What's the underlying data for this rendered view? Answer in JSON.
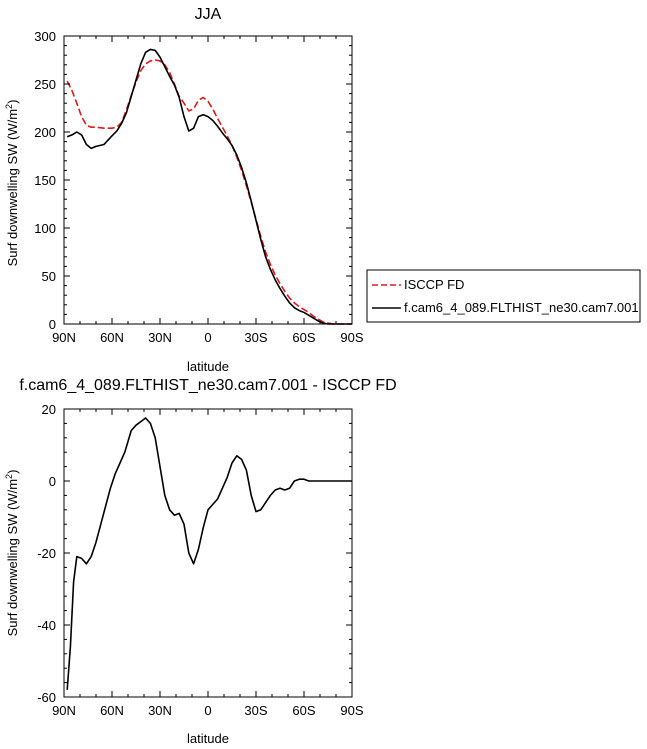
{
  "chart_data": [
    {
      "type": "line",
      "title": "JJA",
      "xlabel": "latitude",
      "ylabel": "Surf downwelling SW (W/m",
      "ylabel_sup": "2",
      "ylabel_close": ")",
      "xlim": [
        90,
        -90
      ],
      "ylim": [
        0,
        300
      ],
      "xticks": [
        90,
        60,
        30,
        0,
        -30,
        -60,
        -90
      ],
      "xtick_labels": [
        "90N",
        "60N",
        "30N",
        "0",
        "30S",
        "60S",
        "90S"
      ],
      "yticks": [
        0,
        50,
        100,
        150,
        200,
        250,
        300
      ],
      "ytick_labels": [
        "0",
        "50",
        "100",
        "150",
        "200",
        "250",
        "300"
      ],
      "legend_position": "right",
      "series": [
        {
          "name": "ISCCP FD",
          "color": "#e0191a",
          "dash": "dashed",
          "x": [
            88,
            85,
            82,
            79,
            76,
            73,
            70,
            65,
            60,
            57,
            54,
            51,
            48,
            45,
            42,
            39,
            36,
            33,
            30,
            27,
            24,
            21,
            18,
            15,
            12,
            9,
            6,
            3,
            0,
            -3,
            -6,
            -9,
            -12,
            -15,
            -18,
            -21,
            -24,
            -27,
            -30,
            -33,
            -36,
            -39,
            -42,
            -45,
            -48,
            -51,
            -54,
            -57,
            -60,
            -63,
            -66,
            -69,
            -72,
            -75,
            -78,
            -81,
            -84,
            -87,
            -90
          ],
          "y": [
            253,
            243,
            230,
            216,
            207,
            205,
            205,
            204,
            204,
            205,
            210,
            223,
            238,
            252,
            264,
            271,
            274,
            275,
            274,
            270,
            262,
            250,
            237,
            230,
            222,
            224,
            233,
            236,
            232,
            224,
            214,
            205,
            196,
            186,
            174,
            160,
            144,
            127,
            109,
            91,
            75,
            62,
            51,
            42,
            34,
            27,
            22,
            18,
            15,
            12,
            8,
            5,
            2,
            1,
            0,
            0,
            0,
            0,
            0
          ]
        },
        {
          "name": "f.cam6_4_089.FLTHIST_ne30.cam7.001",
          "color": "#000000",
          "dash": "solid",
          "x": [
            88,
            85,
            82,
            79,
            76,
            73,
            70,
            65,
            60,
            57,
            54,
            51,
            48,
            45,
            42,
            39,
            36,
            33,
            30,
            27,
            24,
            21,
            18,
            15,
            12,
            9,
            6,
            3,
            0,
            -3,
            -6,
            -9,
            -12,
            -15,
            -18,
            -21,
            -24,
            -27,
            -30,
            -33,
            -36,
            -39,
            -42,
            -45,
            -48,
            -51,
            -54,
            -57,
            -60,
            -63,
            -66,
            -69,
            -72,
            -75,
            -78,
            -81,
            -84,
            -87,
            -90
          ],
          "y": [
            195,
            197,
            200,
            197,
            187,
            183,
            185,
            187,
            196,
            201,
            209,
            220,
            237,
            254,
            271,
            283,
            286,
            285,
            278,
            268,
            258,
            249,
            236,
            216,
            201,
            204,
            216,
            218,
            216,
            212,
            206,
            199,
            193,
            186,
            176,
            163,
            147,
            128,
            108,
            88,
            70,
            57,
            46,
            37,
            29,
            22,
            17,
            14,
            12,
            9,
            6,
            3,
            1,
            0,
            0,
            0,
            0,
            0,
            0
          ]
        }
      ]
    },
    {
      "type": "line",
      "title": "f.cam6_4_089.FLTHIST_ne30.cam7.001 - ISCCP FD",
      "xlabel": "latitude",
      "ylabel": "Surf downwelling SW (W/m",
      "ylabel_sup": "2",
      "ylabel_close": ")",
      "xlim": [
        90,
        -90
      ],
      "ylim": [
        -60,
        20
      ],
      "xticks": [
        90,
        60,
        30,
        0,
        -30,
        -60,
        -90
      ],
      "xtick_labels": [
        "90N",
        "60N",
        "30N",
        "0",
        "30S",
        "60S",
        "90S"
      ],
      "yticks": [
        -60,
        -40,
        -20,
        0,
        20
      ],
      "ytick_labels": [
        "-60",
        "-40",
        "-20",
        "0",
        "20"
      ],
      "series": [
        {
          "color": "#000000",
          "dash": "solid",
          "x": [
            88,
            86,
            84,
            82,
            79,
            76,
            73,
            70,
            67,
            64,
            61,
            58,
            55,
            52,
            48,
            45,
            42,
            39,
            36,
            33,
            30,
            27,
            24,
            21,
            18,
            15,
            12,
            9,
            6,
            3,
            0,
            -3,
            -6,
            -9,
            -12,
            -15,
            -18,
            -21,
            -24,
            -27,
            -30,
            -33,
            -36,
            -39,
            -42,
            -45,
            -48,
            -51,
            -54,
            -57,
            -60,
            -63,
            -66,
            -69,
            -72,
            -75,
            -78,
            -81,
            -84,
            -87,
            -90
          ],
          "y": [
            -58,
            -46,
            -28,
            -21,
            -21.5,
            -23,
            -21,
            -17,
            -12,
            -7,
            -2,
            2,
            5,
            8,
            14,
            15.5,
            16.5,
            17.5,
            16,
            12,
            4,
            -4,
            -8,
            -9.5,
            -9,
            -12,
            -20,
            -23,
            -19,
            -13,
            -8,
            -6.5,
            -5,
            -2,
            1,
            5,
            7,
            6,
            3,
            -4,
            -8.5,
            -8,
            -6,
            -4,
            -2.5,
            -2,
            -2.5,
            -2,
            0,
            0.5,
            0.5,
            0,
            0,
            0,
            0,
            0,
            0,
            0,
            0,
            0,
            0
          ]
        }
      ]
    }
  ]
}
